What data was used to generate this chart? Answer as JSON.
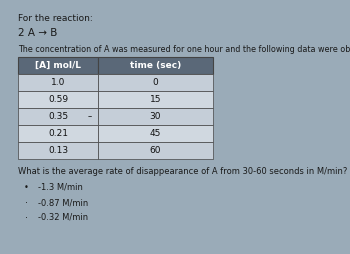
{
  "title_line1": "For the reaction:",
  "reaction": "2 A → B",
  "description": "The concentration of A was measured for one hour and the following data were obtained.",
  "table_headers": [
    "[A] mol/L",
    "time (sec)"
  ],
  "table_data": [
    [
      "1.0",
      "0"
    ],
    [
      "0.59",
      "15"
    ],
    [
      "0.35",
      "30"
    ],
    [
      "0.21",
      "45"
    ],
    [
      "0.13",
      "60"
    ]
  ],
  "dash_row": 2,
  "question": "What is the average rate of disappearance of A from 30-60 seconds in M/min?",
  "answer_choices": [
    "-1.3 M/min",
    "-0.87 M/min",
    "-0.32 M/min"
  ],
  "selected_answer": 0,
  "bg_color": "#9aabb8",
  "table_cell_bg": "#d8dfe6",
  "table_header_bg": "#5a6878",
  "table_border_color": "#444444",
  "text_color": "#1a1a1a",
  "header_text_color": "#ffffff",
  "cell_text_color": "#111111",
  "font_size_title": 6.5,
  "font_size_reaction": 7.5,
  "font_size_desc": 5.8,
  "font_size_table": 6.5,
  "font_size_question": 6.0,
  "font_size_answer": 6.0
}
